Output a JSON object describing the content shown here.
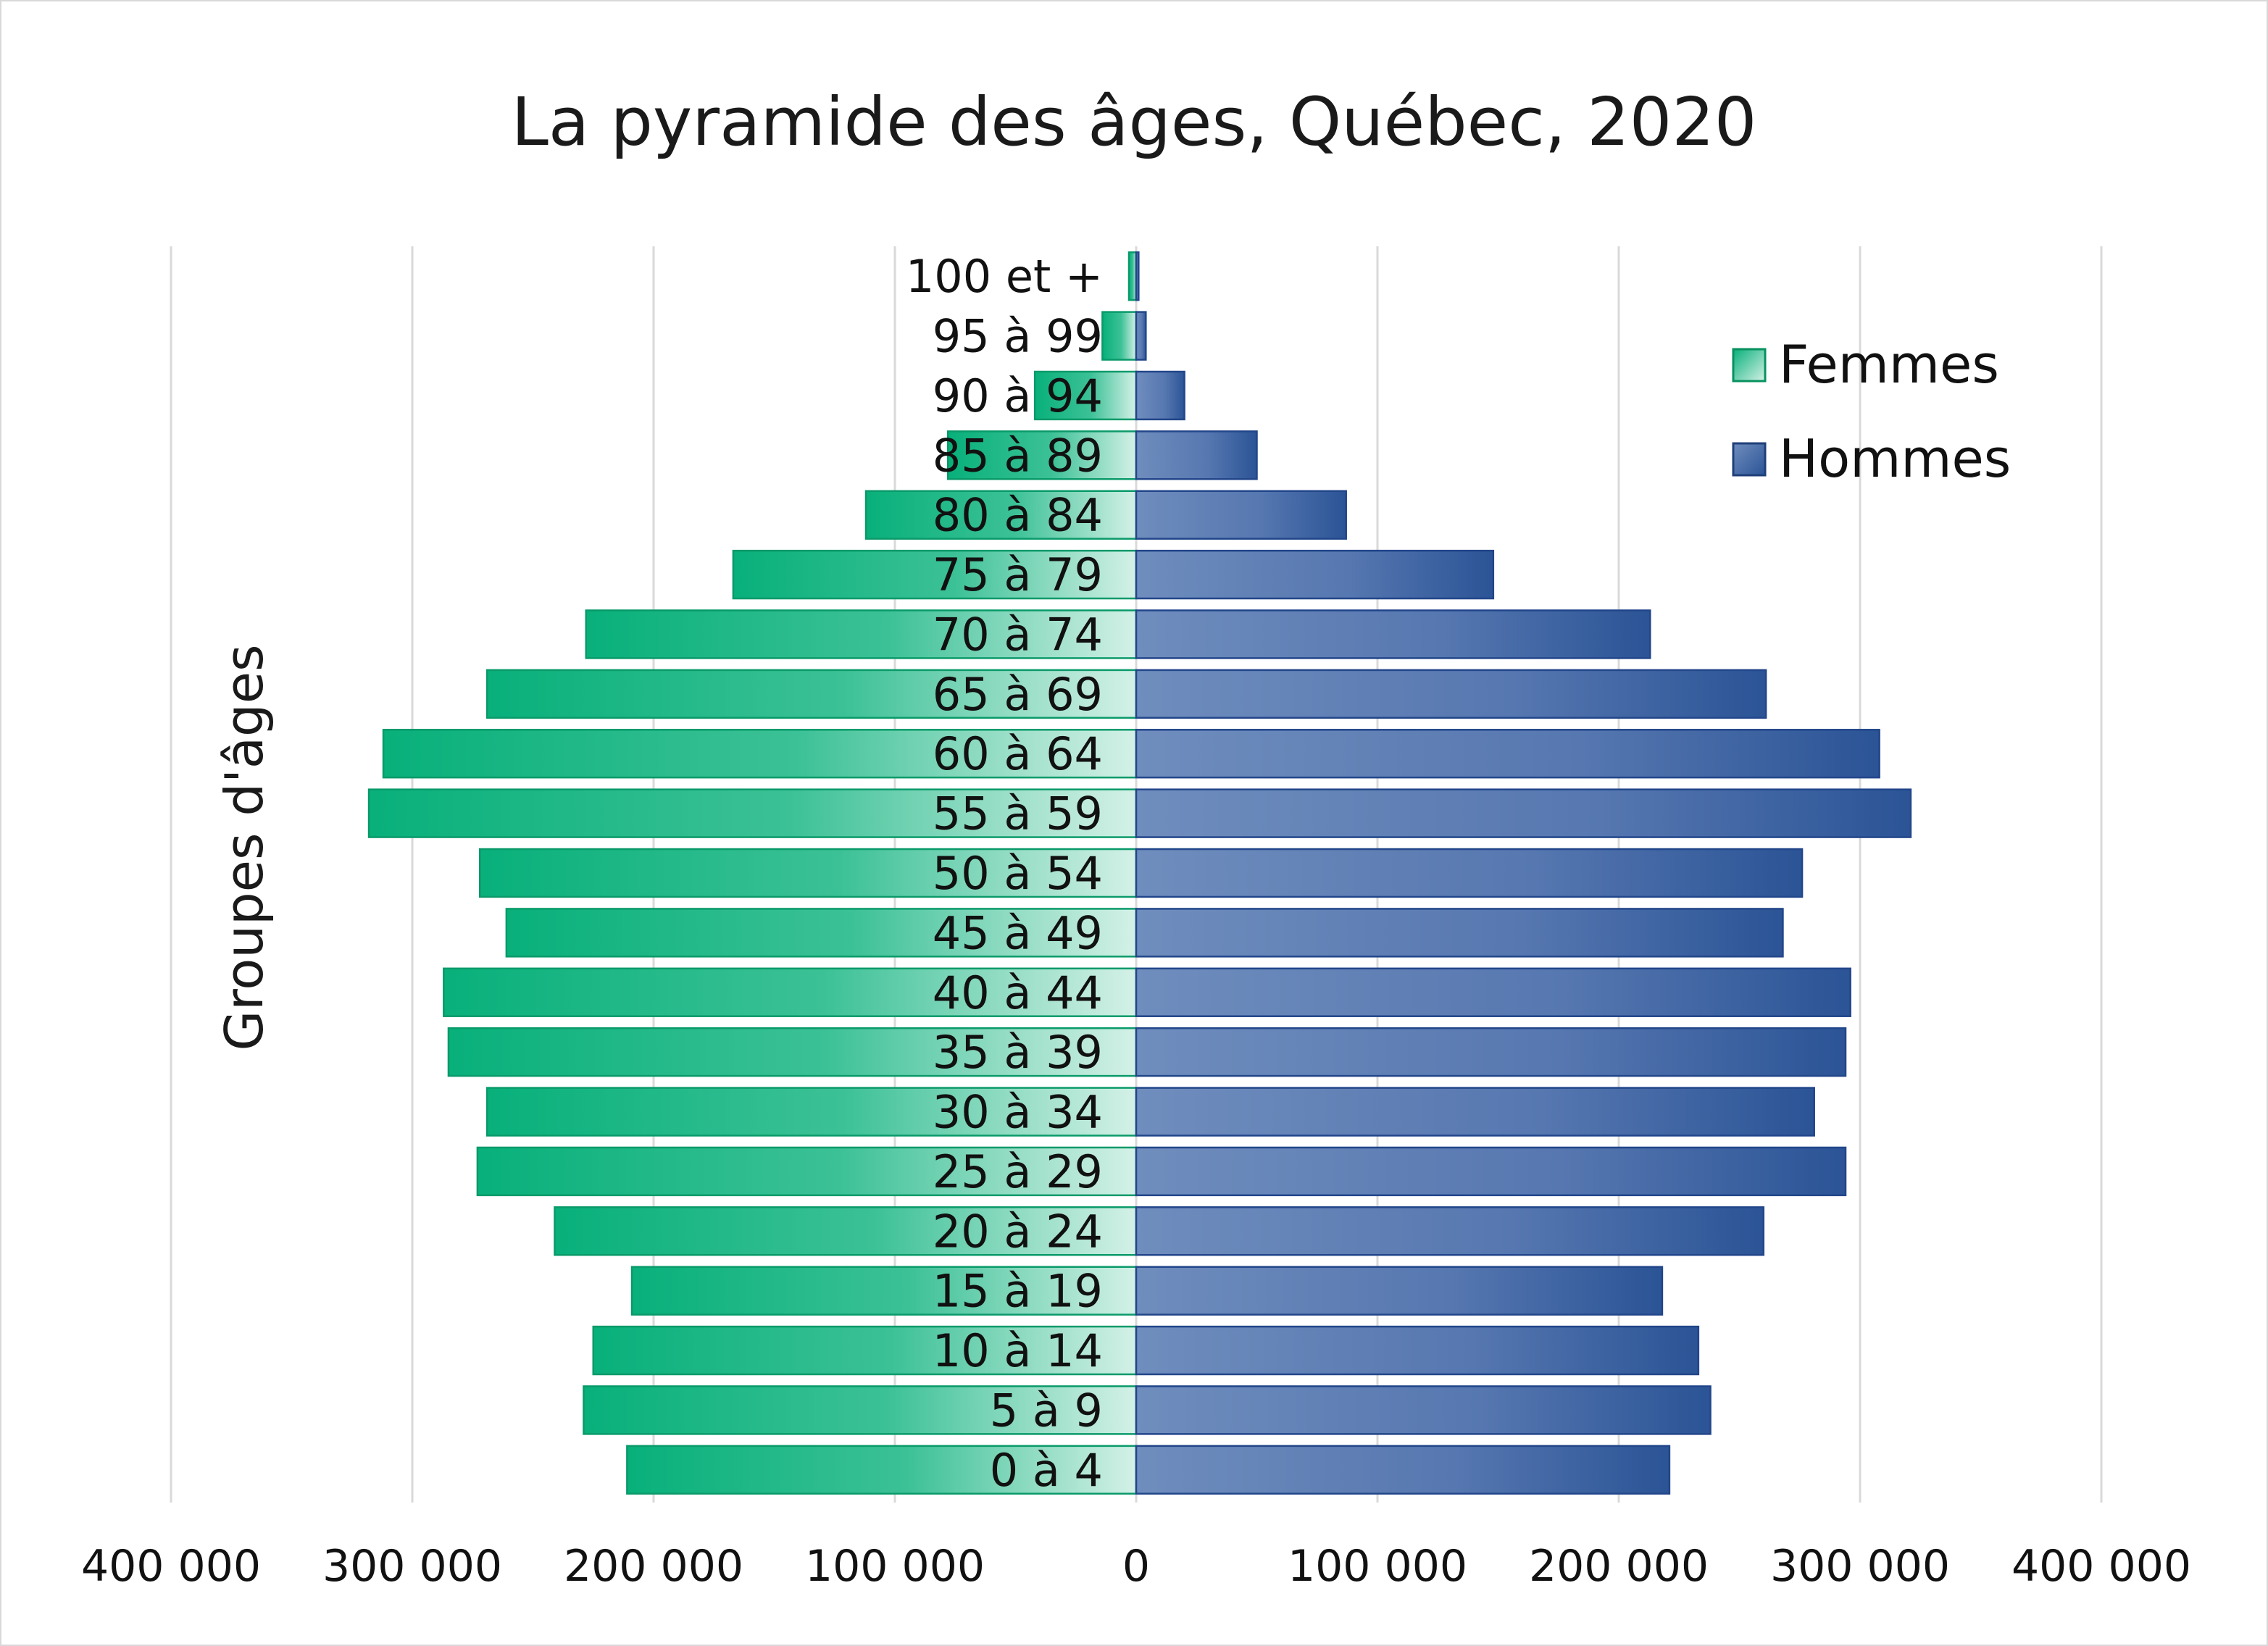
{
  "chart_data": {
    "type": "bar",
    "orientation": "horizontal-diverging",
    "title": "La pyramide des âges, Québec, 2020",
    "ylabel": "Groupes d'âges",
    "categories": [
      "0 à 4",
      "5 à 9",
      "10 à 14",
      "15 à 19",
      "20 à 24",
      "25 à 29",
      "30 à 34",
      "35 à 39",
      "40 à 44",
      "45 à 49",
      "50 à 54",
      "55 à 59",
      "60 à 64",
      "65 à 69",
      "70 à 74",
      "75 à 79",
      "80 à 84",
      "85 à 89",
      "90 à 94",
      "95 à 99",
      "100 et +"
    ],
    "series": [
      {
        "name": "Femmes",
        "color": "#08b07a",
        "values": [
          211000,
          229000,
          225000,
          209000,
          241000,
          273000,
          269000,
          285000,
          287000,
          261000,
          272000,
          318000,
          312000,
          269000,
          228000,
          167000,
          112000,
          78000,
          42000,
          14000,
          3000
        ]
      },
      {
        "name": "Hommes",
        "color": "#2e5597",
        "values": [
          221000,
          238000,
          233000,
          218000,
          260000,
          294000,
          281000,
          294000,
          296000,
          268000,
          276000,
          321000,
          308000,
          261000,
          213000,
          148000,
          87000,
          50000,
          20000,
          4000,
          1000
        ]
      }
    ],
    "xticks": [
      "400 000",
      "300 000",
      "200 000",
      "100 000",
      "0",
      "100 000",
      "200 000",
      "300 000",
      "400 000"
    ],
    "xlim": [
      -400000,
      400000
    ],
    "grid": true,
    "legend": "top-right"
  }
}
